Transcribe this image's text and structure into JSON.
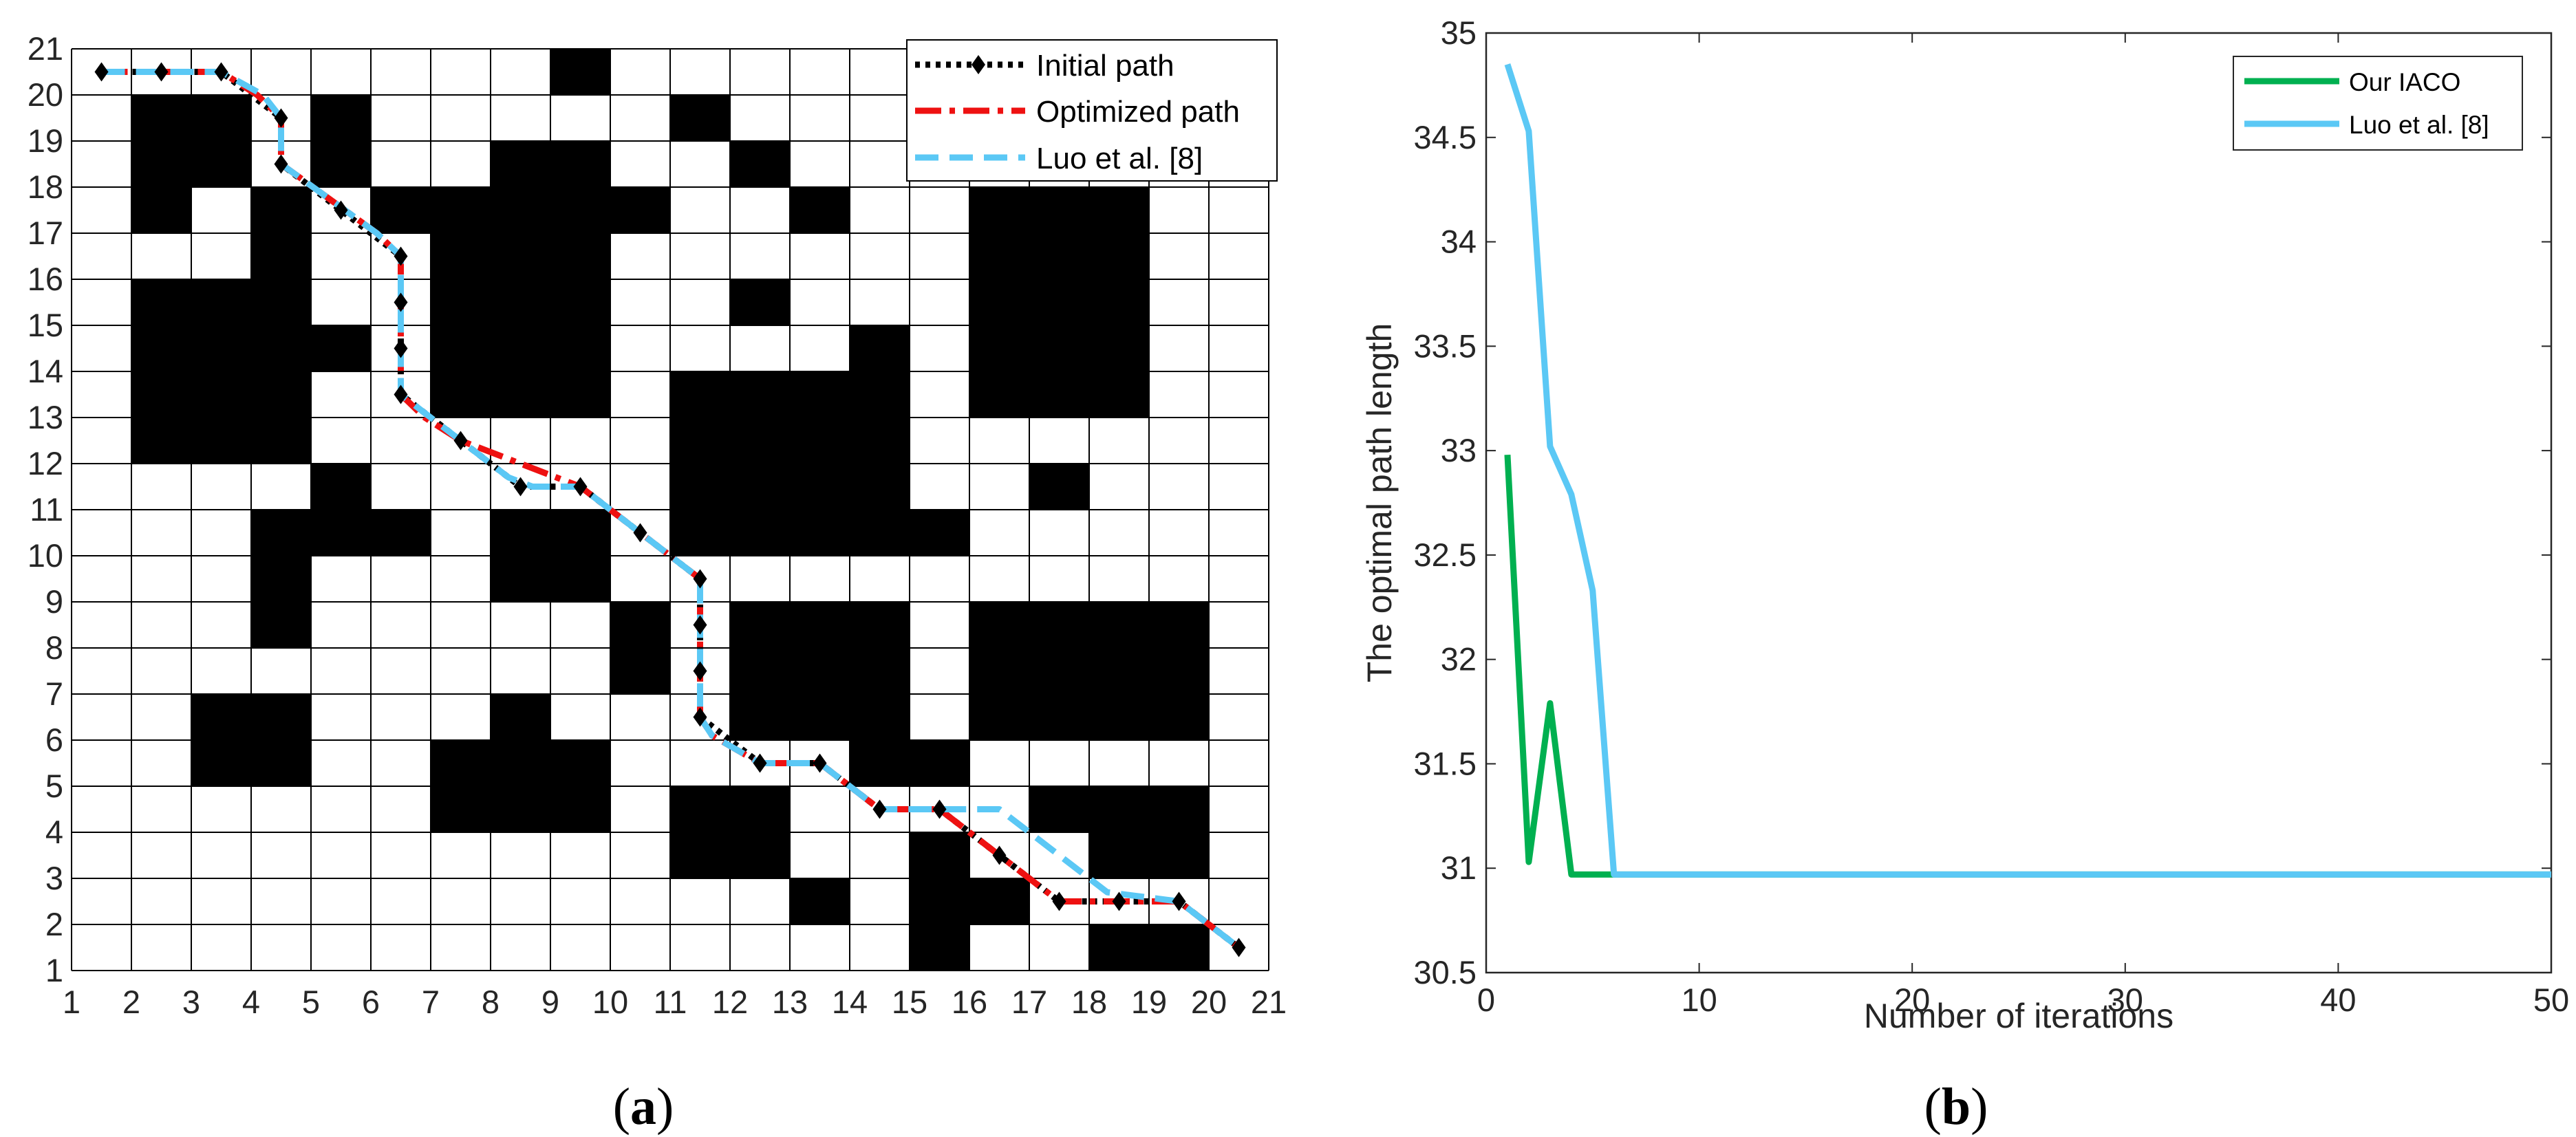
{
  "chart_data": [
    {
      "type": "grid-path",
      "panel_label": "a",
      "grid_size": 21,
      "x_ticks": [
        "1",
        "2",
        "3",
        "4",
        "5",
        "6",
        "7",
        "8",
        "9",
        "10",
        "11",
        "12",
        "13",
        "14",
        "15",
        "16",
        "17",
        "18",
        "19",
        "20",
        "21"
      ],
      "y_ticks": [
        "1",
        "2",
        "3",
        "4",
        "5",
        "6",
        "7",
        "8",
        "9",
        "10",
        "11",
        "12",
        "13",
        "14",
        "15",
        "16",
        "17",
        "18",
        "19",
        "20",
        "21"
      ],
      "obstacles": [
        [
          9,
          20
        ],
        [
          2,
          19
        ],
        [
          3,
          19
        ],
        [
          5,
          19
        ],
        [
          11,
          19
        ],
        [
          2,
          18
        ],
        [
          3,
          18
        ],
        [
          5,
          18
        ],
        [
          8,
          18
        ],
        [
          9,
          18
        ],
        [
          12,
          18
        ],
        [
          2,
          17
        ],
        [
          4,
          17
        ],
        [
          6,
          17
        ],
        [
          7,
          17
        ],
        [
          8,
          17
        ],
        [
          9,
          17
        ],
        [
          10,
          17
        ],
        [
          13,
          17
        ],
        [
          16,
          17
        ],
        [
          17,
          17
        ],
        [
          18,
          17
        ],
        [
          4,
          16
        ],
        [
          7,
          16
        ],
        [
          8,
          16
        ],
        [
          9,
          16
        ],
        [
          16,
          16
        ],
        [
          17,
          16
        ],
        [
          18,
          16
        ],
        [
          2,
          15
        ],
        [
          3,
          15
        ],
        [
          4,
          15
        ],
        [
          7,
          15
        ],
        [
          8,
          15
        ],
        [
          9,
          15
        ],
        [
          12,
          15
        ],
        [
          16,
          15
        ],
        [
          17,
          15
        ],
        [
          18,
          15
        ],
        [
          2,
          14
        ],
        [
          3,
          14
        ],
        [
          4,
          14
        ],
        [
          5,
          14
        ],
        [
          7,
          14
        ],
        [
          8,
          14
        ],
        [
          9,
          14
        ],
        [
          14,
          14
        ],
        [
          16,
          14
        ],
        [
          17,
          14
        ],
        [
          18,
          14
        ],
        [
          2,
          13
        ],
        [
          3,
          13
        ],
        [
          4,
          13
        ],
        [
          7,
          13
        ],
        [
          8,
          13
        ],
        [
          9,
          13
        ],
        [
          11,
          13
        ],
        [
          12,
          13
        ],
        [
          13,
          13
        ],
        [
          14,
          13
        ],
        [
          16,
          13
        ],
        [
          17,
          13
        ],
        [
          18,
          13
        ],
        [
          2,
          12
        ],
        [
          3,
          12
        ],
        [
          4,
          12
        ],
        [
          11,
          12
        ],
        [
          12,
          12
        ],
        [
          13,
          12
        ],
        [
          14,
          12
        ],
        [
          5,
          11
        ],
        [
          11,
          11
        ],
        [
          12,
          11
        ],
        [
          13,
          11
        ],
        [
          14,
          11
        ],
        [
          17,
          11
        ],
        [
          4,
          10
        ],
        [
          5,
          10
        ],
        [
          6,
          10
        ],
        [
          8,
          10
        ],
        [
          9,
          10
        ],
        [
          11,
          10
        ],
        [
          12,
          10
        ],
        [
          13,
          10
        ],
        [
          14,
          10
        ],
        [
          15,
          10
        ],
        [
          4,
          9
        ],
        [
          8,
          9
        ],
        [
          9,
          9
        ],
        [
          4,
          8
        ],
        [
          10,
          8
        ],
        [
          12,
          8
        ],
        [
          13,
          8
        ],
        [
          14,
          8
        ],
        [
          16,
          8
        ],
        [
          17,
          8
        ],
        [
          18,
          8
        ],
        [
          19,
          8
        ],
        [
          10,
          7
        ],
        [
          12,
          7
        ],
        [
          13,
          7
        ],
        [
          14,
          7
        ],
        [
          16,
          7
        ],
        [
          17,
          7
        ],
        [
          18,
          7
        ],
        [
          19,
          7
        ],
        [
          3,
          6
        ],
        [
          4,
          6
        ],
        [
          8,
          6
        ],
        [
          12,
          6
        ],
        [
          13,
          6
        ],
        [
          14,
          6
        ],
        [
          16,
          6
        ],
        [
          17,
          6
        ],
        [
          18,
          6
        ],
        [
          19,
          6
        ],
        [
          3,
          5
        ],
        [
          4,
          5
        ],
        [
          7,
          5
        ],
        [
          8,
          5
        ],
        [
          9,
          5
        ],
        [
          14,
          5
        ],
        [
          15,
          5
        ],
        [
          7,
          4
        ],
        [
          8,
          4
        ],
        [
          9,
          4
        ],
        [
          11,
          4
        ],
        [
          12,
          4
        ],
        [
          17,
          4
        ],
        [
          18,
          4
        ],
        [
          19,
          4
        ],
        [
          11,
          3
        ],
        [
          12,
          3
        ],
        [
          15,
          3
        ],
        [
          18,
          3
        ],
        [
          19,
          3
        ],
        [
          13,
          2
        ],
        [
          15,
          2
        ],
        [
          16,
          2
        ],
        [
          15,
          1
        ],
        [
          18,
          1
        ],
        [
          19,
          1
        ]
      ],
      "series": [
        {
          "name": "Initial path",
          "color": "#000000",
          "style": "dotted-with-diamonds",
          "x": [
            1.5,
            2.5,
            3.5,
            4.5,
            4.5,
            5.5,
            6.5,
            6.5,
            6.5,
            6.5,
            7.5,
            8.5,
            9.5,
            10.5,
            11.5,
            11.5,
            11.5,
            11.5,
            12.5,
            13.5,
            14.5,
            15.5,
            16.5,
            17.5,
            18.5,
            19.5,
            20.5
          ],
          "y": [
            20.5,
            20.5,
            20.5,
            19.5,
            18.5,
            17.5,
            16.5,
            15.5,
            14.5,
            13.5,
            12.5,
            11.5,
            11.5,
            10.5,
            9.5,
            8.5,
            7.5,
            6.5,
            5.5,
            5.5,
            4.5,
            4.5,
            3.5,
            2.5,
            2.5,
            2.5,
            1.5
          ]
        },
        {
          "name": "Optimized path",
          "color": "#ee1111",
          "style": "dash-dot",
          "x": [
            1.5,
            3.5,
            4.1,
            4.5,
            4.5,
            6.1,
            6.5,
            6.5,
            6.9,
            7.5,
            8.3,
            9.5,
            10.5,
            11.3,
            11.5,
            11.5,
            11.7,
            12.5,
            13.5,
            14.5,
            15.5,
            16.5,
            17.5,
            18.5,
            19.5,
            20.5
          ],
          "y": [
            20.5,
            20.5,
            20.0,
            19.5,
            18.5,
            17.0,
            16.5,
            13.5,
            13.0,
            12.5,
            12.1,
            11.5,
            10.5,
            9.7,
            9.5,
            6.5,
            6.1,
            5.5,
            5.5,
            4.5,
            4.5,
            3.5,
            2.5,
            2.5,
            2.5,
            1.5
          ]
        },
        {
          "name": "Luo et al. [8]",
          "color": "#5bc8f5",
          "style": "dashed",
          "x": [
            1.5,
            3.5,
            4.2,
            4.5,
            4.5,
            6.1,
            6.5,
            6.5,
            7.3,
            7.9,
            8.3,
            8.7,
            9.5,
            10.5,
            11.3,
            11.5,
            11.5,
            11.7,
            12.5,
            13.5,
            14.5,
            16.5,
            18.3,
            19.5,
            20.5
          ],
          "y": [
            20.5,
            20.5,
            20.0,
            19.5,
            18.5,
            17.0,
            16.5,
            13.5,
            12.7,
            12.1,
            11.7,
            11.5,
            11.5,
            10.5,
            9.7,
            9.5,
            6.5,
            6.1,
            5.5,
            5.5,
            4.5,
            4.5,
            2.7,
            2.5,
            1.5
          ]
        }
      ]
    },
    {
      "type": "line",
      "panel_label": "b",
      "xlabel": "Number of iterations",
      "ylabel": "The optimal path length",
      "xlim": [
        0,
        50
      ],
      "ylim": [
        30.5,
        35
      ],
      "x_ticks": [
        "0",
        "10",
        "20",
        "30",
        "40",
        "50"
      ],
      "y_ticks": [
        "30.5",
        "31",
        "31.5",
        "32",
        "32.5",
        "33",
        "33.5",
        "34",
        "34.5",
        "35"
      ],
      "legend_position": "top-right",
      "series": [
        {
          "name": "Our IACO",
          "color": "#00b050",
          "x": [
            1,
            2,
            3,
            4,
            5,
            6,
            7,
            8,
            9,
            10,
            20,
            30,
            40,
            50
          ],
          "y": [
            32.98,
            31.03,
            31.79,
            30.97,
            30.97,
            30.97,
            30.97,
            30.97,
            30.97,
            30.97,
            30.97,
            30.97,
            30.97,
            30.97
          ]
        },
        {
          "name": "Luo et al. [8]",
          "color": "#5bc8f5",
          "x": [
            1,
            2,
            3,
            4,
            5,
            6,
            7,
            8,
            9,
            10,
            20,
            30,
            40,
            50
          ],
          "y": [
            34.85,
            34.53,
            33.02,
            32.79,
            32.33,
            30.97,
            30.97,
            30.97,
            30.97,
            30.97,
            30.97,
            30.97,
            30.97,
            30.97
          ]
        }
      ]
    }
  ],
  "captions": {
    "a": "a",
    "b": "b"
  }
}
